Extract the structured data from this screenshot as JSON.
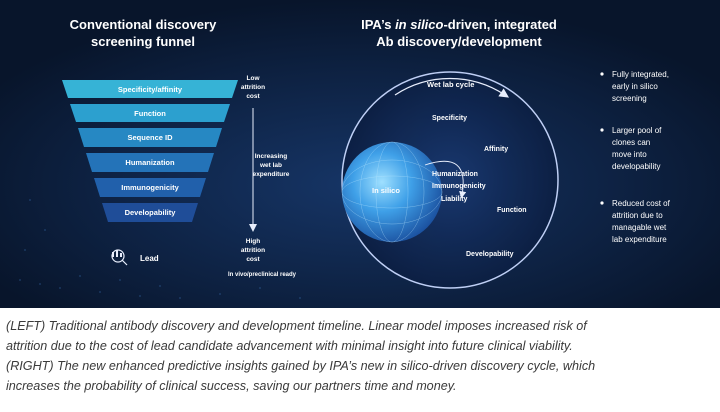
{
  "left": {
    "title_line1": "Conventional discovery",
    "title_line2": "screening funnel",
    "stages": [
      "Specificity/affinity",
      "Function",
      "Sequence ID",
      "Humanization",
      "Immunogenicity",
      "Developability"
    ],
    "lead_label": "Lead",
    "side_top": [
      "Low",
      "attrition",
      "cost"
    ],
    "side_mid": [
      "Increasing",
      "wet lab",
      "expenditure"
    ],
    "side_bottom": [
      "High",
      "attrition",
      "cost"
    ],
    "side_footer": "In vivo/preclinical ready"
  },
  "right": {
    "title_prefix": "IPA’s ",
    "title_italic": "in silico",
    "title_suffix": "-driven, integrated",
    "title_line2": "Ab discovery/development",
    "wet_lab": "Wet lab cycle",
    "in_silico": "In silico",
    "labels": {
      "specificity": "Specificity",
      "affinity": "Affinity",
      "humanization": "Humanization",
      "immunogenicity": "Immunogenicity",
      "liability": "Liability",
      "function": "Function",
      "developability": "Developability"
    },
    "bullets": [
      {
        "lines": [
          "Fully integrated,",
          "early in silico",
          "screening"
        ]
      },
      {
        "lines": [
          "Larger pool of",
          "clones can",
          "move into",
          "developability"
        ]
      },
      {
        "lines": [
          "Reduced cost of",
          "attrition due to",
          "managable wet",
          "lab expenditure"
        ]
      }
    ]
  },
  "caption": {
    "line1": "(LEFT) Traditional antibody discovery and development timeline. Linear model imposes increased risk of",
    "line2": "attrition due to the cost of lead candidate advancement with minimal insight into future clinical viability.",
    "line3": "(RIGHT) The new enhanced predictive insights gained by IPA’s new in silico-driven discovery cycle, which",
    "line4": "increases the probability of clinical success, saving our partners time and money."
  },
  "colors": {
    "background": "#0b1a33",
    "funnel_top": "#2fa9cf",
    "funnel_bottom": "#1f3f8f",
    "circle_ring": "#c9d9ff",
    "in_silico_sphere": "#3fa0e8"
  }
}
